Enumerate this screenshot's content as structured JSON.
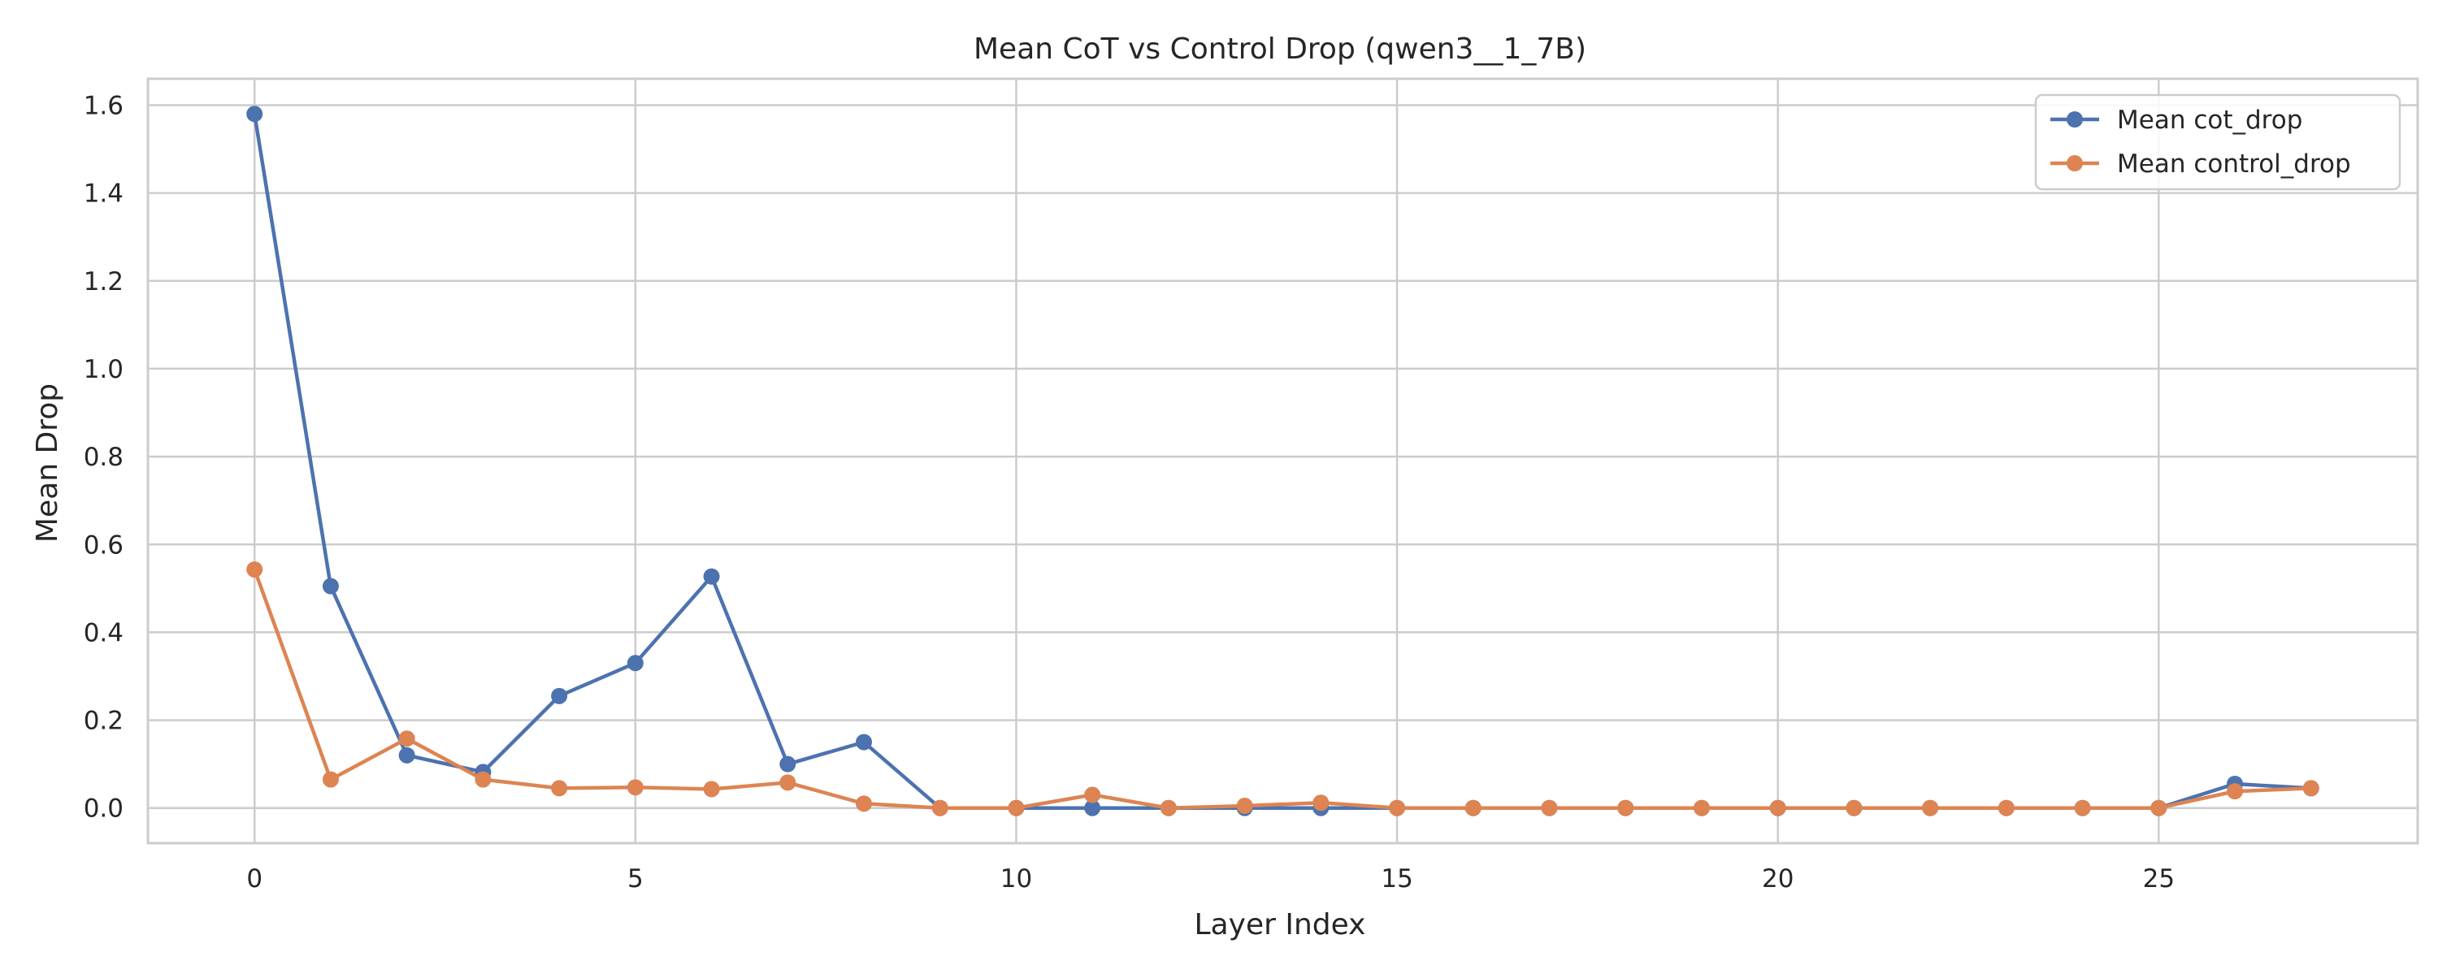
{
  "chart_data": {
    "type": "line",
    "title": "Mean CoT vs Control Drop (qwen3__1_7B)",
    "xlabel": "Layer Index",
    "ylabel": "Mean Drop",
    "xlim": [
      -1.4,
      28.4
    ],
    "ylim": [
      -0.08,
      1.66
    ],
    "grid": true,
    "legend_position": "top-right",
    "xticks": [
      0,
      5,
      10,
      15,
      20,
      25
    ],
    "xtick_labels": [
      "0",
      "5",
      "10",
      "15",
      "20",
      "25"
    ],
    "yticks": [
      0.0,
      0.2,
      0.4,
      0.6,
      0.8,
      1.0,
      1.2,
      1.4,
      1.6
    ],
    "ytick_labels": [
      "0.0",
      "0.2",
      "0.4",
      "0.6",
      "0.8",
      "1.0",
      "1.2",
      "1.4",
      "1.6"
    ],
    "x": [
      0,
      1,
      2,
      3,
      4,
      5,
      6,
      7,
      8,
      9,
      10,
      11,
      12,
      13,
      14,
      15,
      16,
      17,
      18,
      19,
      20,
      21,
      22,
      23,
      24,
      25,
      26,
      27
    ],
    "series": [
      {
        "name": "Mean cot_drop",
        "color": "#4c72b0",
        "values": [
          1.58,
          0.505,
          0.12,
          0.082,
          0.255,
          0.33,
          0.527,
          0.1,
          0.15,
          0.0,
          0.0,
          0.0,
          0.0,
          0.0,
          0.0,
          0.0,
          0.0,
          0.0,
          0.0,
          0.0,
          0.0,
          0.0,
          0.0,
          0.0,
          0.0,
          0.0,
          0.055,
          0.045
        ]
      },
      {
        "name": "Mean control_drop",
        "color": "#dd8452",
        "values": [
          0.543,
          0.065,
          0.158,
          0.065,
          0.045,
          0.047,
          0.043,
          0.058,
          0.01,
          0.0,
          0.0,
          0.03,
          0.0,
          0.005,
          0.012,
          0.0,
          0.0,
          0.0,
          0.0,
          0.0,
          0.0,
          0.0,
          0.0,
          0.0,
          0.0,
          0.0,
          0.038,
          0.045
        ]
      }
    ]
  }
}
